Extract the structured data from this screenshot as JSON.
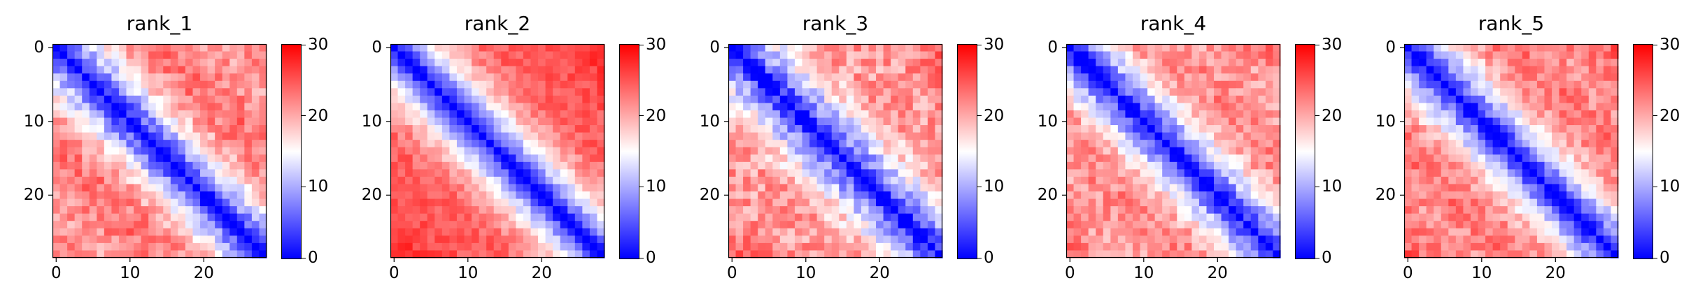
{
  "figure": {
    "colormap": {
      "low": "#0000ff",
      "mid": "#ffffff",
      "high": "#ff0000"
    }
  },
  "chart_data": [
    {
      "type": "heatmap",
      "title": "rank_1",
      "size": 29,
      "vmin": 0,
      "vmax": 30,
      "xticks": [
        "0",
        "10",
        "20"
      ],
      "yticks": [
        "0",
        "10",
        "20"
      ],
      "colorbar_ticks": [
        "0",
        "10",
        "20",
        "30"
      ],
      "diag_profile": [
        0,
        3,
        6,
        8.5,
        11,
        13,
        15,
        17,
        18.5,
        20,
        21,
        22,
        22.5,
        23,
        23,
        23,
        22.5,
        22,
        22,
        21.5,
        21,
        21,
        21,
        21.5,
        22,
        22.5,
        23,
        23.5,
        24
      ],
      "noise": 3.0,
      "seed": 11
    },
    {
      "type": "heatmap",
      "title": "rank_2",
      "size": 29,
      "vmin": 0,
      "vmax": 30,
      "xticks": [
        "0",
        "10",
        "20"
      ],
      "yticks": [
        "0",
        "10",
        "20"
      ],
      "colorbar_ticks": [
        "0",
        "10",
        "20",
        "30"
      ],
      "diag_profile": [
        0,
        3,
        6,
        9,
        11.5,
        14,
        16,
        18,
        19.5,
        21,
        22,
        23,
        23.5,
        24,
        24.5,
        24.5,
        24.5,
        24.5,
        25,
        25,
        25.5,
        25.5,
        26,
        26,
        26.5,
        27,
        27,
        27.5,
        28
      ],
      "noise": 2.0,
      "seed": 27
    },
    {
      "type": "heatmap",
      "title": "rank_3",
      "size": 29,
      "vmin": 0,
      "vmax": 30,
      "xticks": [
        "0",
        "10",
        "20"
      ],
      "yticks": [
        "0",
        "10",
        "20"
      ],
      "colorbar_ticks": [
        "0",
        "10",
        "20",
        "30"
      ],
      "diag_profile": [
        0,
        3,
        5.5,
        8,
        10,
        12,
        14,
        15.5,
        17,
        18,
        19,
        20,
        20.5,
        21,
        21,
        21,
        21,
        21,
        21,
        21,
        21,
        21.5,
        22,
        22,
        22.5,
        23,
        23,
        23.5,
        24
      ],
      "noise": 3.5,
      "seed": 43
    },
    {
      "type": "heatmap",
      "title": "rank_4",
      "size": 29,
      "vmin": 0,
      "vmax": 30,
      "xticks": [
        "0",
        "10",
        "20"
      ],
      "yticks": [
        "0",
        "10",
        "20"
      ],
      "colorbar_ticks": [
        "0",
        "10",
        "20",
        "30"
      ],
      "diag_profile": [
        0,
        3,
        6,
        8.5,
        11,
        13,
        15,
        17,
        18.5,
        20,
        21,
        21.5,
        22,
        22,
        22,
        22,
        21.5,
        21,
        21,
        20.5,
        20.5,
        21,
        21,
        21.5,
        22,
        22.5,
        23,
        23.5,
        24
      ],
      "noise": 3.0,
      "seed": 59
    },
    {
      "type": "heatmap",
      "title": "rank_5",
      "size": 29,
      "vmin": 0,
      "vmax": 30,
      "xticks": [
        "0",
        "10",
        "20"
      ],
      "yticks": [
        "0",
        "10",
        "20"
      ],
      "colorbar_ticks": [
        "0",
        "10",
        "20",
        "30"
      ],
      "diag_profile": [
        0,
        3,
        6,
        8.5,
        11,
        13,
        15,
        17,
        18.5,
        20,
        21,
        22,
        22.5,
        23,
        23,
        23,
        22.5,
        22,
        22,
        21.5,
        21.5,
        21.5,
        22,
        22,
        22.5,
        23,
        23.5,
        24,
        24.5
      ],
      "noise": 2.8,
      "seed": 71
    }
  ]
}
